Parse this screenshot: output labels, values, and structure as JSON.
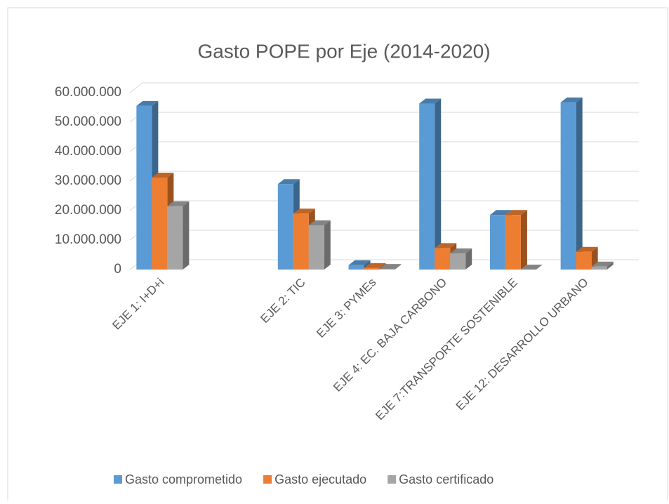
{
  "chart_data": {
    "type": "bar3d",
    "title": "Gasto POPE por Eje (2014-2020)",
    "categories": [
      "EJE 1: I+D+i",
      null,
      "EJE 2: TIC",
      "EJE 3: PYMEs",
      "EJE 4: EC. BAJA CARBONO",
      "EJE 7:TRANSPORTE SOSTENIBLE",
      "EJE 12: DESARROLLO URBANO"
    ],
    "series": [
      {
        "name": "Gasto comprometido",
        "color": "#5b9bd5",
        "values": [
          55500000,
          null,
          29000000,
          1500000,
          56300000,
          18500000,
          56700000
        ]
      },
      {
        "name": "Gasto ejecutado",
        "color": "#ed7d31",
        "values": [
          31200000,
          null,
          19000000,
          500000,
          7300000,
          18500000,
          6000000
        ]
      },
      {
        "name": "Gasto certificado",
        "color": "#a5a5a5",
        "values": [
          21500000,
          null,
          15000000,
          200000,
          5500000,
          0,
          1000000
        ]
      }
    ],
    "ylim": [
      0,
      60000000
    ],
    "yticks": [
      0,
      {
        "value": 10000000,
        "label": "10.000.000"
      },
      {
        "value": 20000000,
        "label": "20.000.000"
      },
      {
        "value": 30000000,
        "label": "30.000.000"
      },
      {
        "value": 40000000,
        "label": "40.000.000"
      },
      {
        "value": 50000000,
        "label": "50.000.000"
      },
      {
        "value": 60000000,
        "label": "60.000.000"
      }
    ],
    "grid": true,
    "legend": "bottom"
  }
}
